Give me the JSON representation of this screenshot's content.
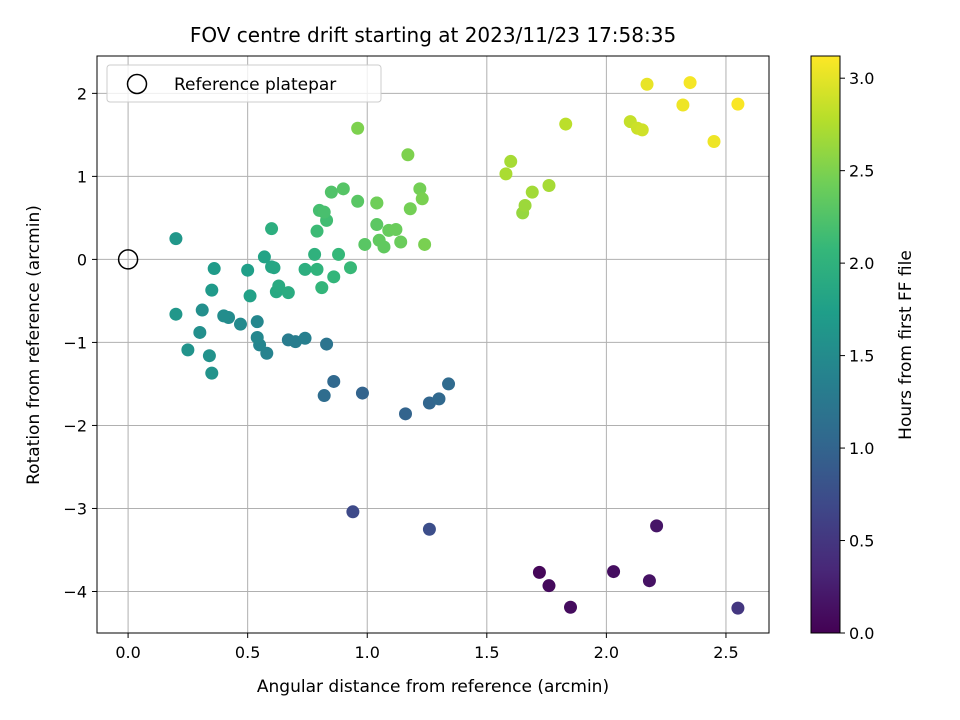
{
  "chart_data": {
    "type": "scatter",
    "title": "FOV centre drift starting at 2023/11/23 17:58:35",
    "xlabel": "Angular distance from reference (arcmin)",
    "ylabel": "Rotation from reference (arcmin)",
    "colorbar_label": "Hours from first FF file",
    "colormap": "viridis",
    "xlim": [
      -0.13,
      2.68
    ],
    "ylim": [
      -4.5,
      2.45
    ],
    "x_ticks": [
      0.0,
      0.5,
      1.0,
      1.5,
      2.0,
      2.5
    ],
    "x_tick_labels": [
      "0.0",
      "0.5",
      "1.0",
      "1.5",
      "2.0",
      "2.5"
    ],
    "y_ticks": [
      2,
      1,
      0,
      -1,
      -2,
      -3,
      -4
    ],
    "y_tick_labels": [
      "2",
      "1",
      "0",
      "−1",
      "−2",
      "−3",
      "−4"
    ],
    "colorbar_range": [
      0.0,
      3.12
    ],
    "colorbar_ticks": [
      0.0,
      0.5,
      1.0,
      1.5,
      2.0,
      2.5,
      3.0
    ],
    "colorbar_tick_labels": [
      "0.0",
      "0.5",
      "1.0",
      "1.5",
      "2.0",
      "2.5",
      "3.0"
    ],
    "grid": true,
    "legend_position": "top-left",
    "reference": {
      "label": "Reference platepar",
      "x": 0.0,
      "y": 0.0
    },
    "points": [
      {
        "x": 1.72,
        "y": -3.77,
        "c": 0.05
      },
      {
        "x": 1.76,
        "y": -3.93,
        "c": 0.08
      },
      {
        "x": 1.85,
        "y": -4.19,
        "c": 0.1
      },
      {
        "x": 2.03,
        "y": -3.76,
        "c": 0.12
      },
      {
        "x": 2.18,
        "y": -3.87,
        "c": 0.15
      },
      {
        "x": 2.21,
        "y": -3.21,
        "c": 0.18
      },
      {
        "x": 2.55,
        "y": -4.2,
        "c": 0.5
      },
      {
        "x": 0.94,
        "y": -3.04,
        "c": 0.7
      },
      {
        "x": 1.26,
        "y": -3.25,
        "c": 0.75
      },
      {
        "x": 1.16,
        "y": -1.86,
        "c": 1.0
      },
      {
        "x": 1.26,
        "y": -1.73,
        "c": 1.02
      },
      {
        "x": 1.3,
        "y": -1.68,
        "c": 1.05
      },
      {
        "x": 1.34,
        "y": -1.5,
        "c": 1.08
      },
      {
        "x": 0.98,
        "y": -1.61,
        "c": 1.0
      },
      {
        "x": 0.86,
        "y": -1.47,
        "c": 1.05
      },
      {
        "x": 0.82,
        "y": -1.64,
        "c": 1.1
      },
      {
        "x": 0.83,
        "y": -1.02,
        "c": 1.2
      },
      {
        "x": 0.67,
        "y": -0.97,
        "c": 1.3
      },
      {
        "x": 0.7,
        "y": -0.99,
        "c": 1.32
      },
      {
        "x": 0.74,
        "y": -0.95,
        "c": 1.35
      },
      {
        "x": 0.58,
        "y": -1.13,
        "c": 1.4
      },
      {
        "x": 0.55,
        "y": -1.03,
        "c": 1.42
      },
      {
        "x": 0.54,
        "y": -0.94,
        "c": 1.45
      },
      {
        "x": 0.54,
        "y": -0.75,
        "c": 1.45
      },
      {
        "x": 0.47,
        "y": -0.78,
        "c": 1.48
      },
      {
        "x": 0.42,
        "y": -0.7,
        "c": 1.5
      },
      {
        "x": 0.4,
        "y": -0.68,
        "c": 1.52
      },
      {
        "x": 0.31,
        "y": -0.61,
        "c": 1.55
      },
      {
        "x": 0.3,
        "y": -0.88,
        "c": 1.55
      },
      {
        "x": 0.34,
        "y": -1.16,
        "c": 1.58
      },
      {
        "x": 0.35,
        "y": -1.37,
        "c": 1.6
      },
      {
        "x": 0.25,
        "y": -1.09,
        "c": 1.6
      },
      {
        "x": 0.2,
        "y": -0.66,
        "c": 1.65
      },
      {
        "x": 0.2,
        "y": 0.25,
        "c": 1.65
      },
      {
        "x": 0.35,
        "y": -0.37,
        "c": 1.68
      },
      {
        "x": 0.36,
        "y": -0.11,
        "c": 1.7
      },
      {
        "x": 0.5,
        "y": -0.13,
        "c": 1.75
      },
      {
        "x": 0.51,
        "y": -0.44,
        "c": 1.78
      },
      {
        "x": 0.57,
        "y": 0.03,
        "c": 1.8
      },
      {
        "x": 0.6,
        "y": -0.09,
        "c": 1.82
      },
      {
        "x": 0.61,
        "y": -0.1,
        "c": 1.85
      },
      {
        "x": 0.62,
        "y": -0.39,
        "c": 1.88
      },
      {
        "x": 0.63,
        "y": -0.32,
        "c": 1.9
      },
      {
        "x": 0.67,
        "y": -0.4,
        "c": 1.92
      },
      {
        "x": 0.6,
        "y": 0.37,
        "c": 1.95
      },
      {
        "x": 0.74,
        "y": -0.12,
        "c": 1.95
      },
      {
        "x": 0.78,
        "y": 0.06,
        "c": 2.0
      },
      {
        "x": 0.79,
        "y": -0.12,
        "c": 2.02
      },
      {
        "x": 0.81,
        "y": -0.34,
        "c": 2.05
      },
      {
        "x": 0.86,
        "y": -0.21,
        "c": 2.05
      },
      {
        "x": 0.88,
        "y": 0.06,
        "c": 2.08
      },
      {
        "x": 0.93,
        "y": -0.1,
        "c": 2.1
      },
      {
        "x": 0.79,
        "y": 0.34,
        "c": 2.12
      },
      {
        "x": 0.83,
        "y": 0.47,
        "c": 2.15
      },
      {
        "x": 0.8,
        "y": 0.59,
        "c": 2.18
      },
      {
        "x": 0.82,
        "y": 0.57,
        "c": 2.2
      },
      {
        "x": 0.85,
        "y": 0.81,
        "c": 2.25
      },
      {
        "x": 0.9,
        "y": 0.85,
        "c": 2.28
      },
      {
        "x": 0.96,
        "y": 0.7,
        "c": 2.3
      },
      {
        "x": 0.99,
        "y": 0.18,
        "c": 2.3
      },
      {
        "x": 1.04,
        "y": 0.42,
        "c": 2.32
      },
      {
        "x": 1.05,
        "y": 0.23,
        "c": 2.35
      },
      {
        "x": 1.07,
        "y": 0.15,
        "c": 2.35
      },
      {
        "x": 1.09,
        "y": 0.35,
        "c": 2.38
      },
      {
        "x": 1.12,
        "y": 0.36,
        "c": 2.4
      },
      {
        "x": 1.14,
        "y": 0.21,
        "c": 2.4
      },
      {
        "x": 1.04,
        "y": 0.68,
        "c": 2.42
      },
      {
        "x": 1.04,
        "y": 0.68,
        "c": 2.43
      },
      {
        "x": 1.18,
        "y": 0.61,
        "c": 2.45
      },
      {
        "x": 1.22,
        "y": 0.85,
        "c": 2.45
      },
      {
        "x": 1.23,
        "y": 0.73,
        "c": 2.48
      },
      {
        "x": 1.24,
        "y": 0.18,
        "c": 2.48
      },
      {
        "x": 0.96,
        "y": 1.58,
        "c": 2.5
      },
      {
        "x": 1.17,
        "y": 1.26,
        "c": 2.5
      },
      {
        "x": 1.65,
        "y": 0.56,
        "c": 2.62
      },
      {
        "x": 1.66,
        "y": 0.65,
        "c": 2.65
      },
      {
        "x": 1.69,
        "y": 0.81,
        "c": 2.68
      },
      {
        "x": 1.76,
        "y": 0.89,
        "c": 2.7
      },
      {
        "x": 1.58,
        "y": 1.03,
        "c": 2.72
      },
      {
        "x": 1.6,
        "y": 1.18,
        "c": 2.7
      },
      {
        "x": 1.83,
        "y": 1.63,
        "c": 2.8
      },
      {
        "x": 2.1,
        "y": 1.66,
        "c": 2.85
      },
      {
        "x": 2.13,
        "y": 1.58,
        "c": 2.88
      },
      {
        "x": 2.15,
        "y": 1.56,
        "c": 2.9
      },
      {
        "x": 2.17,
        "y": 2.11,
        "c": 3.02
      },
      {
        "x": 2.32,
        "y": 1.86,
        "c": 3.05
      },
      {
        "x": 2.35,
        "y": 2.13,
        "c": 3.08
      },
      {
        "x": 2.45,
        "y": 1.42,
        "c": 3.05
      },
      {
        "x": 2.55,
        "y": 1.87,
        "c": 3.1
      }
    ]
  }
}
